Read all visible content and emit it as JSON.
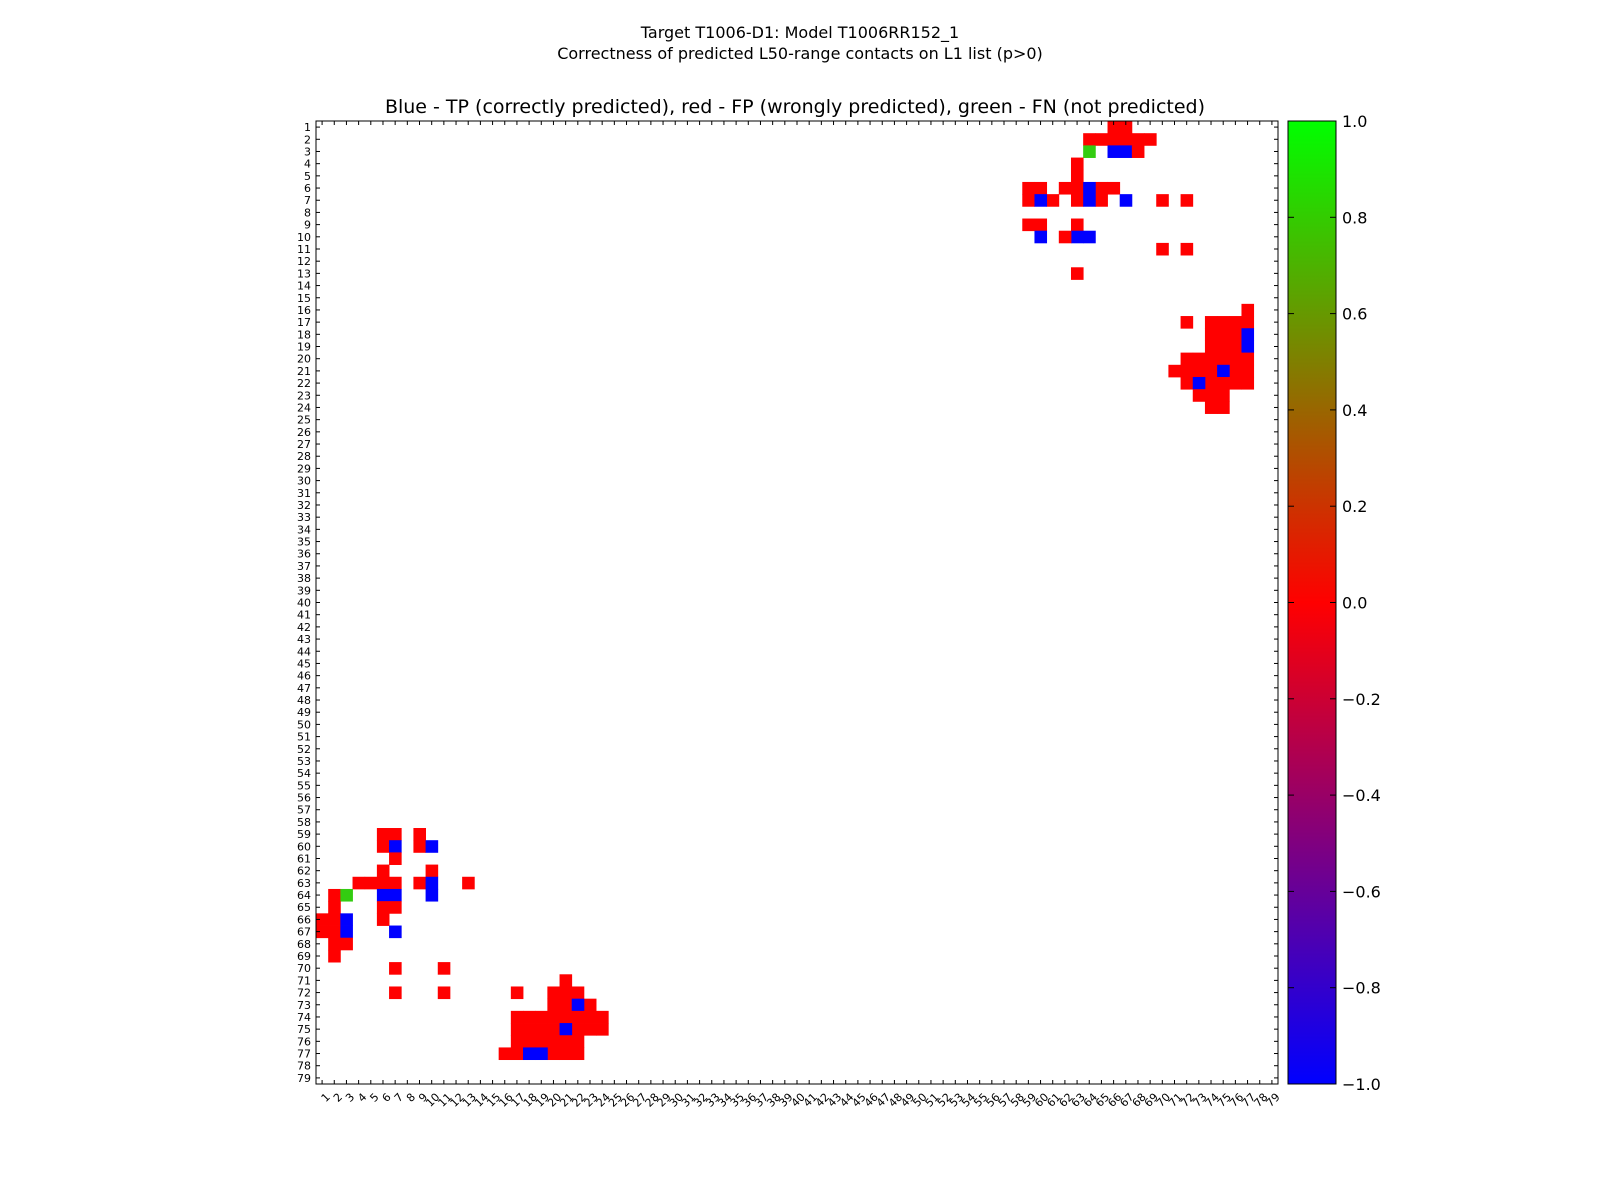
{
  "figure": {
    "title_line1": "Target T1006-D1: Model T1006RR152_1",
    "title_line2": "Correctness of predicted L50-range contacts on L1 list (p>0)"
  },
  "chart_data": {
    "type": "heatmap",
    "title": "Blue - TP (correctly predicted), red - FP (wrongly predicted), green - FN (not predicted)",
    "xlabel": "",
    "ylabel": "",
    "n": 79,
    "x_range": [
      1,
      79
    ],
    "y_range": [
      1,
      79
    ],
    "x_ticks": [
      "1",
      "2",
      "3",
      "4",
      "5",
      "6",
      "7",
      "8",
      "9",
      "10",
      "11",
      "12",
      "13",
      "14",
      "15",
      "16",
      "17",
      "18",
      "19",
      "20",
      "21",
      "22",
      "23",
      "24",
      "25",
      "26",
      "27",
      "28",
      "29",
      "30",
      "31",
      "32",
      "33",
      "34",
      "35",
      "36",
      "37",
      "38",
      "39",
      "40",
      "41",
      "42",
      "43",
      "44",
      "45",
      "46",
      "47",
      "48",
      "49",
      "50",
      "51",
      "52",
      "53",
      "54",
      "55",
      "56",
      "57",
      "58",
      "59",
      "60",
      "61",
      "62",
      "63",
      "64",
      "65",
      "66",
      "67",
      "68",
      "69",
      "70",
      "71",
      "72",
      "73",
      "74",
      "75",
      "76",
      "77",
      "78",
      "79"
    ],
    "y_ticks": [
      "1",
      "2",
      "3",
      "4",
      "5",
      "6",
      "7",
      "8",
      "9",
      "10",
      "11",
      "12",
      "13",
      "14",
      "15",
      "16",
      "17",
      "18",
      "19",
      "20",
      "21",
      "22",
      "23",
      "24",
      "25",
      "26",
      "27",
      "28",
      "29",
      "30",
      "31",
      "32",
      "33",
      "34",
      "35",
      "36",
      "37",
      "38",
      "39",
      "40",
      "41",
      "42",
      "43",
      "44",
      "45",
      "46",
      "47",
      "48",
      "49",
      "50",
      "51",
      "52",
      "53",
      "54",
      "55",
      "56",
      "57",
      "58",
      "59",
      "60",
      "61",
      "62",
      "63",
      "64",
      "65",
      "66",
      "67",
      "68",
      "69",
      "70",
      "71",
      "72",
      "73",
      "74",
      "75",
      "76",
      "77",
      "78",
      "79"
    ],
    "legend": {
      "TP": "Blue",
      "FP": "red",
      "FN": "green"
    },
    "category_values": {
      "TP": -1.0,
      "FP": 0.0,
      "FN": 1.0
    },
    "colorbar": {
      "min": -1.0,
      "max": 1.0,
      "tick_labels": [
        "1.0",
        "0.8",
        "0.6",
        "0.4",
        "0.2",
        "0.0",
        "−0.2",
        "−0.4",
        "−0.6",
        "−0.8",
        "−1.0"
      ],
      "tick_values": [
        1.0,
        0.8,
        0.6,
        0.4,
        0.2,
        0.0,
        -0.2,
        -0.4,
        -0.6,
        -0.8,
        -1.0
      ]
    },
    "cells_upper": [
      {
        "row": 1,
        "cols": [
          66,
          67
        ],
        "v": "FP"
      },
      {
        "row": 2,
        "cols": [
          64,
          65,
          66,
          67,
          68,
          69
        ],
        "v": "FP"
      },
      {
        "row": 3,
        "cols": [
          64
        ],
        "v": "FN"
      },
      {
        "row": 3,
        "cols": [
          66,
          67
        ],
        "v": "TP"
      },
      {
        "row": 3,
        "cols": [
          68
        ],
        "v": "FP"
      },
      {
        "row": 4,
        "cols": [
          63
        ],
        "v": "FP"
      },
      {
        "row": 5,
        "cols": [
          63
        ],
        "v": "FP"
      },
      {
        "row": 6,
        "cols": [
          59,
          60,
          62,
          63,
          65,
          66
        ],
        "v": "FP"
      },
      {
        "row": 6,
        "cols": [
          64
        ],
        "v": "TP"
      },
      {
        "row": 7,
        "cols": [
          59,
          61,
          63,
          65,
          70,
          72
        ],
        "v": "FP"
      },
      {
        "row": 7,
        "cols": [
          60,
          64,
          67
        ],
        "v": "TP"
      },
      {
        "row": 9,
        "cols": [
          59,
          60,
          63
        ],
        "v": "FP"
      },
      {
        "row": 10,
        "cols": [
          60,
          63,
          64
        ],
        "v": "TP"
      },
      {
        "row": 10,
        "cols": [
          62
        ],
        "v": "FP"
      },
      {
        "row": 11,
        "cols": [
          70,
          72
        ],
        "v": "FP"
      },
      {
        "row": 13,
        "cols": [
          63
        ],
        "v": "FP"
      },
      {
        "row": 16,
        "cols": [
          77
        ],
        "v": "FP"
      },
      {
        "row": 17,
        "cols": [
          72,
          74,
          75,
          76,
          77
        ],
        "v": "FP"
      },
      {
        "row": 18,
        "cols": [
          74,
          75,
          76
        ],
        "v": "FP"
      },
      {
        "row": 18,
        "cols": [
          77
        ],
        "v": "TP"
      },
      {
        "row": 19,
        "cols": [
          74,
          75,
          76
        ],
        "v": "FP"
      },
      {
        "row": 19,
        "cols": [
          77
        ],
        "v": "TP"
      },
      {
        "row": 20,
        "cols": [
          72,
          73,
          74,
          75,
          76,
          77
        ],
        "v": "FP"
      },
      {
        "row": 21,
        "cols": [
          71,
          72,
          73,
          74,
          76,
          77
        ],
        "v": "FP"
      },
      {
        "row": 21,
        "cols": [
          75
        ],
        "v": "TP"
      },
      {
        "row": 22,
        "cols": [
          72,
          74,
          75,
          76,
          77
        ],
        "v": "FP"
      },
      {
        "row": 22,
        "cols": [
          73
        ],
        "v": "TP"
      },
      {
        "row": 23,
        "cols": [
          73,
          74,
          75
        ],
        "v": "FP"
      },
      {
        "row": 24,
        "cols": [
          74,
          75
        ],
        "v": "FP"
      }
    ],
    "cells_lower": [
      {
        "row": 59,
        "cols": [
          6,
          7,
          9
        ],
        "v": "FP"
      },
      {
        "row": 60,
        "cols": [
          6,
          9
        ],
        "v": "FP"
      },
      {
        "row": 60,
        "cols": [
          7,
          10
        ],
        "v": "TP"
      },
      {
        "row": 61,
        "cols": [
          7
        ],
        "v": "FP"
      },
      {
        "row": 62,
        "cols": [
          6,
          10
        ],
        "v": "FP"
      },
      {
        "row": 63,
        "cols": [
          4,
          5,
          6,
          7,
          9,
          13
        ],
        "v": "FP"
      },
      {
        "row": 63,
        "cols": [
          10
        ],
        "v": "TP"
      },
      {
        "row": 64,
        "cols": [
          2
        ],
        "v": "FP"
      },
      {
        "row": 64,
        "cols": [
          3
        ],
        "v": "FN"
      },
      {
        "row": 64,
        "cols": [
          6,
          7,
          10
        ],
        "v": "TP"
      },
      {
        "row": 65,
        "cols": [
          2,
          6,
          7
        ],
        "v": "FP"
      },
      {
        "row": 66,
        "cols": [
          1,
          2,
          6
        ],
        "v": "FP"
      },
      {
        "row": 66,
        "cols": [
          3
        ],
        "v": "TP"
      },
      {
        "row": 67,
        "cols": [
          1,
          2
        ],
        "v": "FP"
      },
      {
        "row": 67,
        "cols": [
          3,
          7
        ],
        "v": "TP"
      },
      {
        "row": 68,
        "cols": [
          2,
          3
        ],
        "v": "FP"
      },
      {
        "row": 69,
        "cols": [
          2
        ],
        "v": "FP"
      },
      {
        "row": 70,
        "cols": [
          7,
          11
        ],
        "v": "FP"
      },
      {
        "row": 71,
        "cols": [
          21
        ],
        "v": "FP"
      },
      {
        "row": 72,
        "cols": [
          7,
          11,
          17,
          20,
          21,
          22
        ],
        "v": "FP"
      },
      {
        "row": 73,
        "cols": [
          20,
          21,
          23
        ],
        "v": "FP"
      },
      {
        "row": 73,
        "cols": [
          22
        ],
        "v": "TP"
      },
      {
        "row": 74,
        "cols": [
          17,
          18,
          19,
          20,
          21,
          22,
          23,
          24
        ],
        "v": "FP"
      },
      {
        "row": 75,
        "cols": [
          17,
          18,
          19,
          20,
          22,
          23,
          24
        ],
        "v": "FP"
      },
      {
        "row": 75,
        "cols": [
          21
        ],
        "v": "TP"
      },
      {
        "row": 76,
        "cols": [
          17,
          18,
          19,
          20,
          21,
          22
        ],
        "v": "FP"
      },
      {
        "row": 77,
        "cols": [
          16,
          17,
          20,
          21,
          22
        ],
        "v": "FP"
      },
      {
        "row": 77,
        "cols": [
          18,
          19
        ],
        "v": "TP"
      }
    ]
  }
}
